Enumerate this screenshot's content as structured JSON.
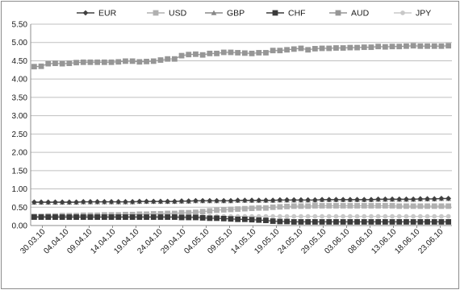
{
  "chart_data": {
    "type": "line",
    "title": "",
    "xlabel": "",
    "ylabel": "",
    "ylim": [
      0,
      5.5
    ],
    "yticks": [
      "0.00",
      "0.50",
      "1.00",
      "1.50",
      "2.00",
      "2.50",
      "3.00",
      "3.50",
      "4.00",
      "4.50",
      "5.00",
      "5.50"
    ],
    "grid": "horizontal",
    "legend_position": "top",
    "x": [
      "30.03.10",
      "01.04.10",
      "06.04.10",
      "07.04.10",
      "08.04.10",
      "09.04.10",
      "12.04.10",
      "13.04.10",
      "14.04.10",
      "15.04.10",
      "16.04.10",
      "19.04.10",
      "20.04.10",
      "21.04.10",
      "22.04.10",
      "23.04.10",
      "26.04.10",
      "27.04.10",
      "28.04.10",
      "29.04.10",
      "30.04.10",
      "03.05.10",
      "05.05.10",
      "06.05.10",
      "07.05.10",
      "10.05.10",
      "11.05.10",
      "12.05.10",
      "14.05.10",
      "17.05.10",
      "18.05.10",
      "19.05.10",
      "20.05.10",
      "21.05.10",
      "25.05.10",
      "26.05.10",
      "27.05.10",
      "28.05.10",
      "31.05.10",
      "01.06.10",
      "02.06.10",
      "03.06.10",
      "04.06.10",
      "07.06.10",
      "08.06.10",
      "09.06.10",
      "10.06.10",
      "11.06.10",
      "14.06.10",
      "15.06.10",
      "16.06.10",
      "17.06.10",
      "18.06.10",
      "21.06.10",
      "22.06.10",
      "23.06.10",
      "24.06.10",
      "25.06.10",
      "28.06.10",
      "29.06.10"
    ],
    "xtick_labels": [
      "30.03.10",
      "04.04.10",
      "09.04.10",
      "14.04.10",
      "19.04.10",
      "24.04.10",
      "29.04.10",
      "04.05.10",
      "09.05.10",
      "14.05.10",
      "19.05.10",
      "24.05.10",
      "29.05.10",
      "03.06.10",
      "08.06.10",
      "13.06.10",
      "18.06.10",
      "23.06.10"
    ],
    "series": [
      {
        "name": "EUR",
        "color": "#404040",
        "marker": "diamond",
        "values": [
          0.64,
          0.64,
          0.64,
          0.64,
          0.64,
          0.64,
          0.64,
          0.65,
          0.65,
          0.65,
          0.65,
          0.65,
          0.65,
          0.65,
          0.65,
          0.66,
          0.66,
          0.66,
          0.66,
          0.66,
          0.66,
          0.67,
          0.67,
          0.68,
          0.68,
          0.68,
          0.68,
          0.68,
          0.68,
          0.69,
          0.69,
          0.69,
          0.69,
          0.69,
          0.69,
          0.7,
          0.7,
          0.7,
          0.7,
          0.7,
          0.7,
          0.71,
          0.71,
          0.71,
          0.71,
          0.71,
          0.71,
          0.71,
          0.71,
          0.72,
          0.72,
          0.72,
          0.72,
          0.72,
          0.72,
          0.73,
          0.73,
          0.73,
          0.74,
          0.74
        ]
      },
      {
        "name": "USD",
        "color": "#b0b0b0",
        "marker": "square",
        "values": [
          0.25,
          0.25,
          0.26,
          0.26,
          0.27,
          0.27,
          0.27,
          0.28,
          0.28,
          0.28,
          0.29,
          0.29,
          0.29,
          0.3,
          0.3,
          0.31,
          0.31,
          0.32,
          0.32,
          0.33,
          0.33,
          0.35,
          0.35,
          0.36,
          0.38,
          0.4,
          0.42,
          0.43,
          0.44,
          0.45,
          0.46,
          0.47,
          0.48,
          0.48,
          0.5,
          0.51,
          0.52,
          0.53,
          0.53,
          0.53,
          0.54,
          0.54,
          0.54,
          0.54,
          0.54,
          0.54,
          0.54,
          0.54,
          0.54,
          0.54,
          0.54,
          0.54,
          0.53,
          0.53,
          0.53,
          0.53,
          0.53,
          0.53,
          0.53,
          0.53
        ]
      },
      {
        "name": "GBP",
        "color": "#888888",
        "marker": "triangle",
        "values": [
          0.63,
          0.63,
          0.63,
          0.63,
          0.63,
          0.63,
          0.63,
          0.64,
          0.64,
          0.64,
          0.64,
          0.64,
          0.64,
          0.64,
          0.64,
          0.65,
          0.65,
          0.65,
          0.65,
          0.65,
          0.65,
          0.66,
          0.66,
          0.67,
          0.67,
          0.67,
          0.67,
          0.67,
          0.67,
          0.68,
          0.68,
          0.68,
          0.68,
          0.68,
          0.68,
          0.69,
          0.69,
          0.69,
          0.69,
          0.69,
          0.69,
          0.7,
          0.7,
          0.7,
          0.7,
          0.7,
          0.7,
          0.7,
          0.7,
          0.71,
          0.71,
          0.71,
          0.71,
          0.71,
          0.71,
          0.72,
          0.72,
          0.72,
          0.73,
          0.73
        ]
      },
      {
        "name": "CHF",
        "color": "#3a3a3a",
        "marker": "square",
        "values": [
          0.23,
          0.23,
          0.23,
          0.23,
          0.23,
          0.23,
          0.23,
          0.23,
          0.23,
          0.23,
          0.23,
          0.23,
          0.23,
          0.23,
          0.23,
          0.23,
          0.23,
          0.23,
          0.23,
          0.23,
          0.23,
          0.22,
          0.22,
          0.22,
          0.21,
          0.2,
          0.2,
          0.19,
          0.18,
          0.17,
          0.17,
          0.16,
          0.15,
          0.14,
          0.12,
          0.11,
          0.11,
          0.1,
          0.1,
          0.1,
          0.1,
          0.1,
          0.1,
          0.1,
          0.1,
          0.1,
          0.1,
          0.1,
          0.1,
          0.1,
          0.1,
          0.1,
          0.1,
          0.1,
          0.1,
          0.1,
          0.1,
          0.1,
          0.1,
          0.1
        ]
      },
      {
        "name": "AUD",
        "color": "#969696",
        "marker": "square",
        "values": [
          4.34,
          4.35,
          4.42,
          4.43,
          4.42,
          4.43,
          4.45,
          4.46,
          4.46,
          4.46,
          4.46,
          4.46,
          4.47,
          4.49,
          4.49,
          4.47,
          4.48,
          4.49,
          4.52,
          4.55,
          4.55,
          4.64,
          4.67,
          4.68,
          4.66,
          4.7,
          4.7,
          4.73,
          4.73,
          4.72,
          4.71,
          4.7,
          4.72,
          4.72,
          4.78,
          4.78,
          4.8,
          4.82,
          4.84,
          4.8,
          4.83,
          4.84,
          4.84,
          4.85,
          4.85,
          4.86,
          4.86,
          4.87,
          4.87,
          4.89,
          4.88,
          4.89,
          4.89,
          4.9,
          4.91,
          4.9,
          4.9,
          4.9,
          4.9,
          4.91
        ]
      },
      {
        "name": "JPY",
        "color": "#c8c8c8",
        "marker": "circle",
        "values": [
          0.25,
          0.25,
          0.25,
          0.25,
          0.25,
          0.25,
          0.25,
          0.25,
          0.25,
          0.25,
          0.25,
          0.25,
          0.25,
          0.25,
          0.25,
          0.25,
          0.25,
          0.25,
          0.25,
          0.25,
          0.25,
          0.25,
          0.25,
          0.25,
          0.25,
          0.25,
          0.25,
          0.25,
          0.25,
          0.25,
          0.25,
          0.25,
          0.25,
          0.25,
          0.25,
          0.25,
          0.25,
          0.25,
          0.25,
          0.25,
          0.25,
          0.25,
          0.25,
          0.25,
          0.25,
          0.25,
          0.25,
          0.25,
          0.25,
          0.25,
          0.25,
          0.25,
          0.25,
          0.25,
          0.25,
          0.25,
          0.25,
          0.25,
          0.25,
          0.25
        ]
      }
    ]
  }
}
